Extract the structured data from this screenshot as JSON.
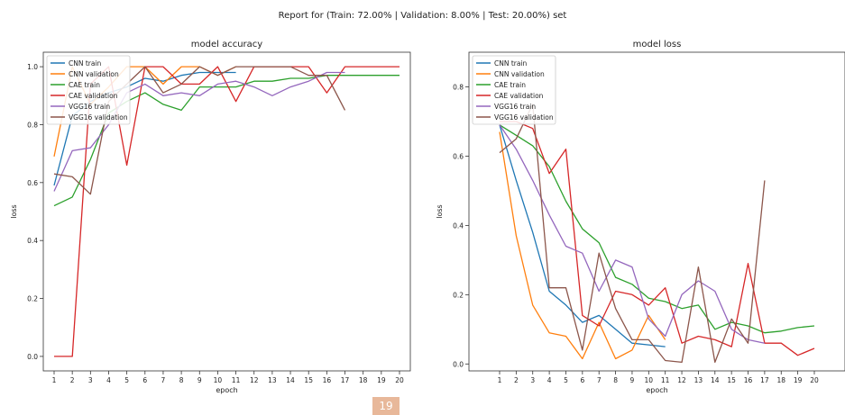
{
  "report_title": "Report for (Train: 72.00% | Validation: 8.00% | Test: 20.00%) set",
  "page_number": "19",
  "chart_data": [
    {
      "type": "line",
      "title": "model accuracy",
      "xlabel": "epoch",
      "ylabel": "loss",
      "x_ticks": [
        1,
        2,
        3,
        4,
        5,
        6,
        7,
        8,
        9,
        10,
        11,
        12,
        13,
        14,
        15,
        16,
        17,
        18,
        19,
        20
      ],
      "ylim": [
        -0.05,
        1.05
      ],
      "y_ticks": [
        0.0,
        0.2,
        0.4,
        0.6,
        0.8,
        1.0
      ],
      "legend_position": "top-left",
      "grid": false,
      "series": [
        {
          "name": "CNN train",
          "color": "#1f77b4",
          "x": [
            1,
            2,
            3,
            4,
            5,
            6,
            7,
            8,
            9,
            10,
            11
          ],
          "values": [
            0.59,
            0.83,
            0.88,
            0.91,
            0.93,
            0.96,
            0.95,
            0.97,
            0.98,
            0.98,
            0.98
          ]
        },
        {
          "name": "CNN validation",
          "color": "#ff7f0e",
          "x": [
            1,
            2,
            3,
            4,
            5,
            6,
            7,
            8,
            9,
            10,
            11
          ],
          "values": [
            0.69,
            1.0,
            0.87,
            0.93,
            1.0,
            1.0,
            0.94,
            1.0,
            1.0,
            0.97,
            1.0
          ]
        },
        {
          "name": "CAE train",
          "color": "#2ca02c",
          "x": [
            1,
            2,
            3,
            4,
            5,
            6,
            7,
            8,
            9,
            10,
            11,
            12,
            13,
            14,
            15,
            16,
            17,
            18,
            19,
            20
          ],
          "values": [
            0.52,
            0.55,
            0.68,
            0.84,
            0.88,
            0.91,
            0.87,
            0.85,
            0.93,
            0.93,
            0.93,
            0.95,
            0.95,
            0.96,
            0.96,
            0.97,
            0.97,
            0.97,
            0.97,
            0.97
          ]
        },
        {
          "name": "CAE validation",
          "color": "#d62728",
          "x": [
            1,
            2,
            3,
            4,
            5,
            6,
            7,
            8,
            9,
            10,
            11,
            12,
            13,
            14,
            15,
            16,
            17,
            18,
            19,
            20
          ],
          "values": [
            0.0,
            0.0,
            0.94,
            1.0,
            0.66,
            1.0,
            1.0,
            0.94,
            0.94,
            1.0,
            0.88,
            1.0,
            1.0,
            1.0,
            1.0,
            0.91,
            1.0,
            1.0,
            1.0,
            1.0
          ]
        },
        {
          "name": "VGG16 train",
          "color": "#9467bd",
          "x": [
            1,
            2,
            3,
            4,
            5,
            6,
            7,
            8,
            9,
            10,
            11,
            12,
            13,
            14,
            15,
            16,
            17
          ],
          "values": [
            0.57,
            0.71,
            0.72,
            0.8,
            0.91,
            0.94,
            0.9,
            0.91,
            0.9,
            0.94,
            0.95,
            0.93,
            0.9,
            0.93,
            0.95,
            0.98,
            0.98
          ]
        },
        {
          "name": "VGG16 validation",
          "color": "#8c564b",
          "x": [
            1,
            2,
            3,
            4,
            5,
            6,
            7,
            8,
            9,
            10,
            11,
            12,
            13,
            14,
            15,
            16,
            17
          ],
          "values": [
            0.63,
            0.62,
            0.56,
            0.88,
            0.94,
            1.0,
            0.91,
            0.94,
            1.0,
            0.97,
            1.0,
            1.0,
            1.0,
            1.0,
            0.97,
            0.97,
            0.85
          ]
        }
      ]
    },
    {
      "type": "line",
      "title": "model loss",
      "xlabel": "epoch",
      "ylabel": "loss",
      "x_ticks": [
        1,
        2,
        3,
        4,
        5,
        6,
        7,
        8,
        9,
        10,
        11,
        12,
        13,
        14,
        15,
        16,
        17,
        18,
        19,
        20
      ],
      "ylim": [
        -0.02,
        0.9
      ],
      "y_ticks": [
        0.0,
        0.2,
        0.4,
        0.6,
        0.8
      ],
      "legend_position": "top-left",
      "grid": false,
      "series": [
        {
          "name": "CNN train",
          "color": "#1f77b4",
          "x": [
            1,
            2,
            3,
            4,
            5,
            6,
            7,
            8,
            9,
            10,
            11
          ],
          "values": [
            0.69,
            0.53,
            0.38,
            0.21,
            0.17,
            0.12,
            0.14,
            0.1,
            0.06,
            0.055,
            0.05
          ]
        },
        {
          "name": "CNN validation",
          "color": "#ff7f0e",
          "x": [
            1,
            2,
            3,
            4,
            5,
            6,
            7,
            8,
            9,
            10,
            11
          ],
          "values": [
            0.67,
            0.37,
            0.17,
            0.09,
            0.08,
            0.015,
            0.12,
            0.015,
            0.04,
            0.14,
            0.07
          ]
        },
        {
          "name": "CAE train",
          "color": "#2ca02c",
          "x": [
            1,
            2,
            3,
            4,
            5,
            6,
            7,
            8,
            9,
            10,
            11,
            12,
            13,
            14,
            15,
            16,
            17,
            18,
            19,
            20
          ],
          "values": [
            0.69,
            0.66,
            0.63,
            0.57,
            0.47,
            0.39,
            0.35,
            0.25,
            0.23,
            0.19,
            0.18,
            0.16,
            0.17,
            0.1,
            0.12,
            0.11,
            0.09,
            0.095,
            0.105,
            0.11
          ]
        },
        {
          "name": "CAE validation",
          "color": "#d62728",
          "x": [
            1,
            2,
            3,
            4,
            5,
            6,
            7,
            8,
            9,
            10,
            11,
            12,
            13,
            14,
            15,
            16,
            17,
            18,
            19,
            20
          ],
          "values": [
            0.7,
            0.7,
            0.68,
            0.55,
            0.62,
            0.14,
            0.11,
            0.21,
            0.2,
            0.17,
            0.22,
            0.06,
            0.08,
            0.07,
            0.05,
            0.29,
            0.06,
            0.06,
            0.025,
            0.045
          ]
        },
        {
          "name": "VGG16 train",
          "color": "#9467bd",
          "x": [
            1,
            2,
            3,
            4,
            5,
            6,
            7,
            8,
            9,
            10,
            11,
            12,
            13,
            14,
            15,
            16,
            17
          ],
          "values": [
            0.69,
            0.62,
            0.53,
            0.43,
            0.34,
            0.32,
            0.21,
            0.3,
            0.28,
            0.13,
            0.08,
            0.2,
            0.24,
            0.21,
            0.1,
            0.07,
            0.06
          ]
        },
        {
          "name": "VGG16 validation",
          "color": "#8c564b",
          "x": [
            1,
            2,
            3,
            4,
            5,
            6,
            7,
            8,
            9,
            10,
            11,
            12,
            13,
            14,
            15,
            16,
            17
          ],
          "values": [
            0.61,
            0.65,
            0.75,
            0.22,
            0.22,
            0.04,
            0.32,
            0.16,
            0.07,
            0.07,
            0.01,
            0.005,
            0.28,
            0.005,
            0.13,
            0.06,
            0.53
          ]
        }
      ]
    }
  ]
}
